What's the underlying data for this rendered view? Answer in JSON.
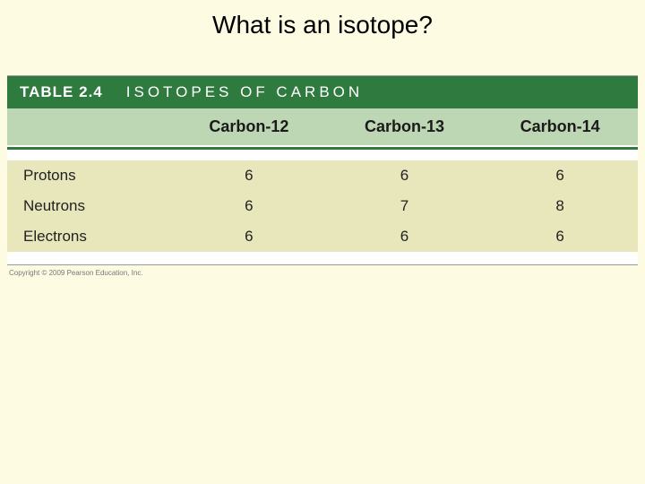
{
  "slide": {
    "title": "What is an isotope?",
    "background_color": "#fdfce3",
    "title_fontsize": 28
  },
  "table": {
    "type": "table",
    "number": "TABLE 2.4",
    "caption": "ISOTOPES OF CARBON",
    "header_bg": "#2f7a3f",
    "header_text_color": "#ffffff",
    "colhead_bg": "#bdd6b3",
    "rule_color": "#2f7a3f",
    "row_bg": "#e8e6bb",
    "label_fontsize": 17,
    "colhead_fontsize": 18,
    "columns": [
      "",
      "Carbon-12",
      "Carbon-13",
      "Carbon-14"
    ],
    "rows": [
      {
        "label": "Protons",
        "values": [
          "6",
          "6",
          "6"
        ]
      },
      {
        "label": "Neutrons",
        "values": [
          "6",
          "7",
          "8"
        ]
      },
      {
        "label": "Electrons",
        "values": [
          "6",
          "6",
          "6"
        ]
      }
    ],
    "col_widths_pct": [
      26,
      24.66,
      24.66,
      24.66
    ]
  },
  "copyright": "Copyright © 2009 Pearson Education, Inc."
}
